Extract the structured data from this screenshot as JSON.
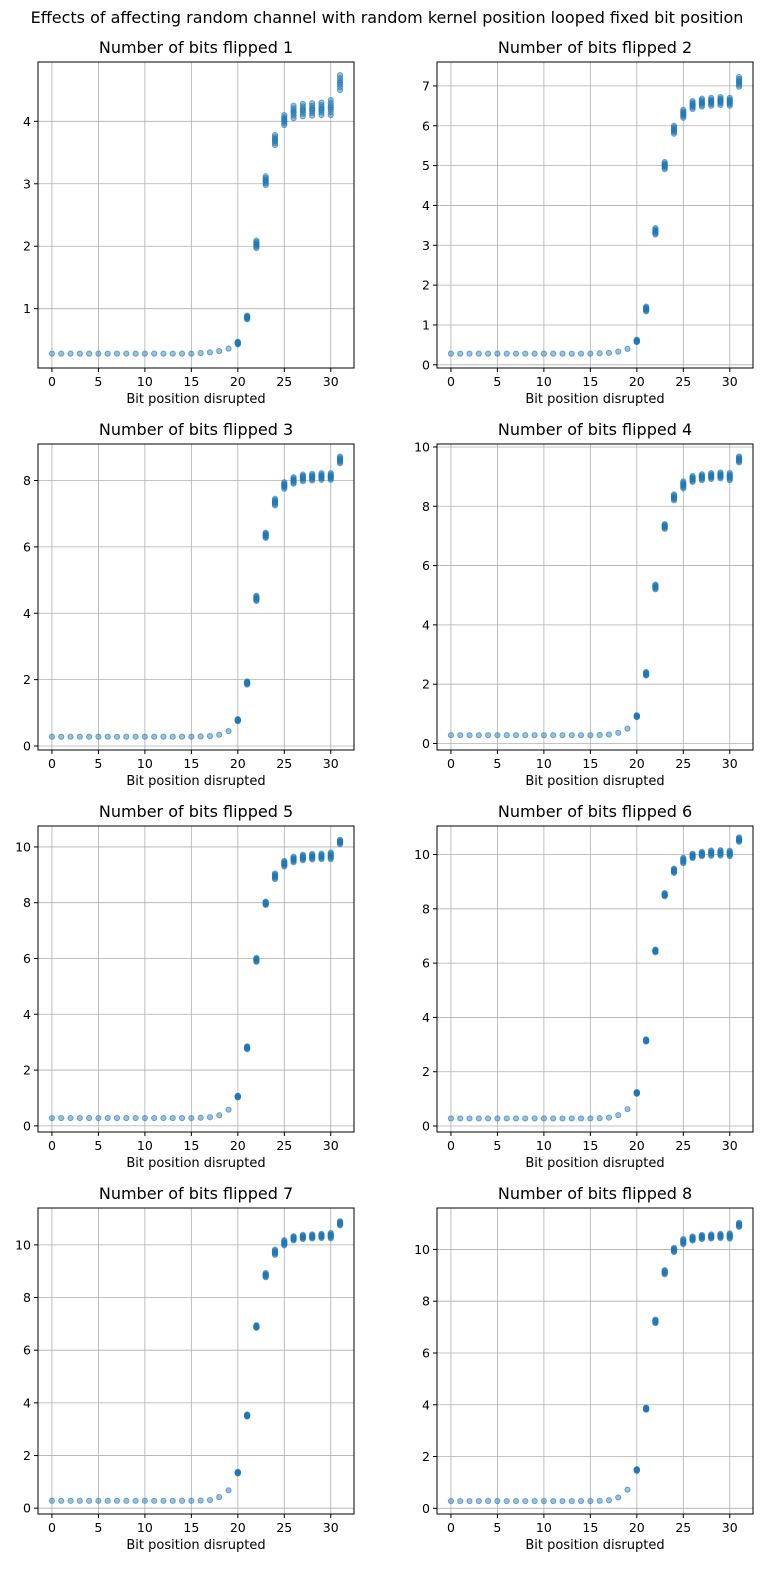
{
  "figure": {
    "suptitle": "Effects of affecting random channel with random kernel position looped fixed bit position"
  },
  "colors": {
    "series": "#1f77b4",
    "grid": "#b0b0b0"
  },
  "chart_data": [
    {
      "type": "scatter",
      "title": "Number of bits flipped 1",
      "xlabel": "Bit position disrupted",
      "ylabel": "",
      "xlim": [
        -1.5,
        32.5
      ],
      "ylim": [
        0.05,
        4.95
      ],
      "xticks": [
        0,
        5,
        10,
        15,
        20,
        25,
        30
      ],
      "yticks": [
        1,
        2,
        3,
        4
      ],
      "grid": true,
      "x": [
        0,
        1,
        2,
        3,
        4,
        5,
        6,
        7,
        8,
        9,
        10,
        11,
        12,
        13,
        14,
        15,
        16,
        17,
        18,
        19,
        20,
        21,
        22,
        23,
        24,
        25,
        26,
        27,
        28,
        29,
        30,
        31
      ],
      "y": [
        0.28,
        0.28,
        0.28,
        0.28,
        0.28,
        0.28,
        0.28,
        0.28,
        0.28,
        0.28,
        0.28,
        0.28,
        0.28,
        0.28,
        0.28,
        0.28,
        0.29,
        0.3,
        0.32,
        0.36,
        0.45,
        0.86,
        2.03,
        3.05,
        3.7,
        4.02,
        4.15,
        4.18,
        4.19,
        4.2,
        4.22,
        4.62
      ],
      "spread": [
        0,
        0,
        0,
        0,
        0,
        0,
        0,
        0,
        0,
        0,
        0,
        0,
        0,
        0,
        0,
        0,
        0,
        0,
        0,
        0,
        0.02,
        0.03,
        0.06,
        0.07,
        0.08,
        0.08,
        0.1,
        0.1,
        0.1,
        0.1,
        0.12,
        0.12
      ]
    },
    {
      "type": "scatter",
      "title": "Number of bits flipped 2",
      "xlabel": "Bit position disrupted",
      "ylabel": "",
      "xlim": [
        -1.5,
        32.5
      ],
      "ylim": [
        -0.08,
        7.6
      ],
      "xticks": [
        0,
        5,
        10,
        15,
        20,
        25,
        30
      ],
      "yticks": [
        0,
        1,
        2,
        3,
        4,
        5,
        6,
        7
      ],
      "grid": true,
      "x": [
        0,
        1,
        2,
        3,
        4,
        5,
        6,
        7,
        8,
        9,
        10,
        11,
        12,
        13,
        14,
        15,
        16,
        17,
        18,
        19,
        20,
        21,
        22,
        23,
        24,
        25,
        26,
        27,
        28,
        29,
        30,
        31
      ],
      "y": [
        0.28,
        0.28,
        0.28,
        0.28,
        0.28,
        0.28,
        0.28,
        0.28,
        0.28,
        0.28,
        0.28,
        0.28,
        0.28,
        0.28,
        0.28,
        0.28,
        0.29,
        0.3,
        0.33,
        0.4,
        0.6,
        1.4,
        3.35,
        5.0,
        5.9,
        6.3,
        6.52,
        6.58,
        6.6,
        6.62,
        6.6,
        7.1
      ],
      "spread": [
        0,
        0,
        0,
        0,
        0,
        0,
        0,
        0,
        0,
        0,
        0,
        0,
        0,
        0,
        0,
        0,
        0,
        0,
        0,
        0,
        0.03,
        0.06,
        0.08,
        0.09,
        0.1,
        0.1,
        0.1,
        0.1,
        0.1,
        0.1,
        0.1,
        0.12
      ]
    },
    {
      "type": "scatter",
      "title": "Number of bits flipped 3",
      "xlabel": "Bit position disrupted",
      "ylabel": "",
      "xlim": [
        -1.5,
        32.5
      ],
      "ylim": [
        -0.12,
        9.1
      ],
      "xticks": [
        0,
        5,
        10,
        15,
        20,
        25,
        30
      ],
      "yticks": [
        0,
        2,
        4,
        6,
        8
      ],
      "grid": true,
      "x": [
        0,
        1,
        2,
        3,
        4,
        5,
        6,
        7,
        8,
        9,
        10,
        11,
        12,
        13,
        14,
        15,
        16,
        17,
        18,
        19,
        20,
        21,
        22,
        23,
        24,
        25,
        26,
        27,
        28,
        29,
        30,
        31
      ],
      "y": [
        0.28,
        0.28,
        0.28,
        0.28,
        0.28,
        0.28,
        0.28,
        0.28,
        0.28,
        0.28,
        0.28,
        0.28,
        0.28,
        0.28,
        0.28,
        0.28,
        0.29,
        0.3,
        0.34,
        0.45,
        0.78,
        1.9,
        4.45,
        6.35,
        7.35,
        7.85,
        8.0,
        8.08,
        8.1,
        8.12,
        8.12,
        8.62
      ],
      "spread": [
        0,
        0,
        0,
        0,
        0,
        0,
        0,
        0,
        0,
        0,
        0,
        0,
        0,
        0,
        0,
        0,
        0,
        0,
        0,
        0,
        0.03,
        0.05,
        0.08,
        0.08,
        0.1,
        0.1,
        0.1,
        0.1,
        0.1,
        0.1,
        0.1,
        0.1
      ]
    },
    {
      "type": "scatter",
      "title": "Number of bits flipped 4",
      "xlabel": "Bit position disrupted",
      "ylabel": "",
      "xlim": [
        -1.5,
        32.5
      ],
      "ylim": [
        -0.22,
        10.1
      ],
      "xticks": [
        0,
        5,
        10,
        15,
        20,
        25,
        30
      ],
      "yticks": [
        0,
        2,
        4,
        6,
        8,
        10
      ],
      "grid": true,
      "x": [
        0,
        1,
        2,
        3,
        4,
        5,
        6,
        7,
        8,
        9,
        10,
        11,
        12,
        13,
        14,
        15,
        16,
        17,
        18,
        19,
        20,
        21,
        22,
        23,
        24,
        25,
        26,
        27,
        28,
        29,
        30,
        31
      ],
      "y": [
        0.28,
        0.28,
        0.28,
        0.28,
        0.28,
        0.28,
        0.28,
        0.28,
        0.28,
        0.28,
        0.28,
        0.28,
        0.28,
        0.28,
        0.28,
        0.28,
        0.29,
        0.3,
        0.36,
        0.5,
        0.92,
        2.35,
        5.28,
        7.32,
        8.3,
        8.72,
        8.92,
        8.98,
        9.02,
        9.04,
        9.0,
        9.58
      ],
      "spread": [
        0,
        0,
        0,
        0,
        0,
        0,
        0,
        0,
        0,
        0,
        0,
        0,
        0,
        0,
        0,
        0,
        0,
        0,
        0,
        0,
        0.03,
        0.06,
        0.08,
        0.08,
        0.1,
        0.12,
        0.1,
        0.1,
        0.1,
        0.1,
        0.12,
        0.1
      ]
    },
    {
      "type": "scatter",
      "title": "Number of bits flipped 5",
      "xlabel": "Bit position disrupted",
      "ylabel": "",
      "xlim": [
        -1.5,
        32.5
      ],
      "ylim": [
        -0.22,
        10.75
      ],
      "xticks": [
        0,
        5,
        10,
        15,
        20,
        25,
        30
      ],
      "yticks": [
        0,
        2,
        4,
        6,
        8,
        10
      ],
      "grid": true,
      "x": [
        0,
        1,
        2,
        3,
        4,
        5,
        6,
        7,
        8,
        9,
        10,
        11,
        12,
        13,
        14,
        15,
        16,
        17,
        18,
        19,
        20,
        21,
        22,
        23,
        24,
        25,
        26,
        27,
        28,
        29,
        30,
        31
      ],
      "y": [
        0.28,
        0.28,
        0.28,
        0.28,
        0.28,
        0.28,
        0.28,
        0.28,
        0.28,
        0.28,
        0.28,
        0.28,
        0.28,
        0.28,
        0.28,
        0.28,
        0.29,
        0.31,
        0.38,
        0.58,
        1.05,
        2.8,
        5.95,
        7.98,
        8.95,
        9.4,
        9.55,
        9.62,
        9.65,
        9.66,
        9.68,
        10.18
      ],
      "spread": [
        0,
        0,
        0,
        0,
        0,
        0,
        0,
        0,
        0,
        0,
        0,
        0,
        0,
        0,
        0,
        0,
        0,
        0,
        0,
        0,
        0.03,
        0.05,
        0.07,
        0.06,
        0.1,
        0.1,
        0.1,
        0.1,
        0.1,
        0.1,
        0.12,
        0.08
      ]
    },
    {
      "type": "scatter",
      "title": "Number of bits flipped 6",
      "xlabel": "Bit position disrupted",
      "ylabel": "",
      "xlim": [
        -1.5,
        32.5
      ],
      "ylim": [
        -0.22,
        11.05
      ],
      "xticks": [
        0,
        5,
        10,
        15,
        20,
        25,
        30
      ],
      "yticks": [
        0,
        2,
        4,
        6,
        8,
        10
      ],
      "grid": true,
      "x": [
        0,
        1,
        2,
        3,
        4,
        5,
        6,
        7,
        8,
        9,
        10,
        11,
        12,
        13,
        14,
        15,
        16,
        17,
        18,
        19,
        20,
        21,
        22,
        23,
        24,
        25,
        26,
        27,
        28,
        29,
        30,
        31
      ],
      "y": [
        0.28,
        0.28,
        0.28,
        0.28,
        0.28,
        0.28,
        0.28,
        0.28,
        0.28,
        0.28,
        0.28,
        0.28,
        0.28,
        0.28,
        0.28,
        0.28,
        0.29,
        0.31,
        0.4,
        0.62,
        1.22,
        3.15,
        6.45,
        8.52,
        9.4,
        9.78,
        9.95,
        10.02,
        10.05,
        10.06,
        10.04,
        10.55
      ],
      "spread": [
        0,
        0,
        0,
        0,
        0,
        0,
        0,
        0,
        0,
        0,
        0,
        0,
        0,
        0,
        0,
        0,
        0,
        0,
        0,
        0,
        0.03,
        0.04,
        0.05,
        0.06,
        0.08,
        0.1,
        0.08,
        0.08,
        0.1,
        0.1,
        0.1,
        0.08
      ]
    },
    {
      "type": "scatter",
      "title": "Number of bits flipped 7",
      "xlabel": "Bit position disrupted",
      "ylabel": "",
      "xlim": [
        -1.5,
        32.5
      ],
      "ylim": [
        -0.22,
        11.4
      ],
      "xticks": [
        0,
        5,
        10,
        15,
        20,
        25,
        30
      ],
      "yticks": [
        0,
        2,
        4,
        6,
        8,
        10
      ],
      "grid": true,
      "x": [
        0,
        1,
        2,
        3,
        4,
        5,
        6,
        7,
        8,
        9,
        10,
        11,
        12,
        13,
        14,
        15,
        16,
        17,
        18,
        19,
        20,
        21,
        22,
        23,
        24,
        25,
        26,
        27,
        28,
        29,
        30,
        31
      ],
      "y": [
        0.28,
        0.28,
        0.28,
        0.28,
        0.28,
        0.28,
        0.28,
        0.28,
        0.28,
        0.28,
        0.28,
        0.28,
        0.28,
        0.28,
        0.28,
        0.28,
        0.29,
        0.31,
        0.42,
        0.68,
        1.35,
        3.52,
        6.9,
        8.85,
        9.72,
        10.08,
        10.25,
        10.3,
        10.32,
        10.34,
        10.35,
        10.82
      ],
      "spread": [
        0,
        0,
        0,
        0,
        0,
        0,
        0,
        0,
        0,
        0,
        0,
        0,
        0,
        0,
        0,
        0,
        0,
        0,
        0,
        0,
        0.03,
        0.04,
        0.05,
        0.08,
        0.1,
        0.1,
        0.08,
        0.08,
        0.08,
        0.08,
        0.1,
        0.08
      ]
    },
    {
      "type": "scatter",
      "title": "Number of bits flipped 8",
      "xlabel": "Bit position disrupted",
      "ylabel": "",
      "xlim": [
        -1.5,
        32.5
      ],
      "ylim": [
        -0.22,
        11.6
      ],
      "xticks": [
        0,
        5,
        10,
        15,
        20,
        25,
        30
      ],
      "yticks": [
        0,
        2,
        4,
        6,
        8,
        10
      ],
      "grid": true,
      "x": [
        0,
        1,
        2,
        3,
        4,
        5,
        6,
        7,
        8,
        9,
        10,
        11,
        12,
        13,
        14,
        15,
        16,
        17,
        18,
        19,
        20,
        21,
        22,
        23,
        24,
        25,
        26,
        27,
        28,
        29,
        30,
        31
      ],
      "y": [
        0.28,
        0.28,
        0.28,
        0.28,
        0.28,
        0.28,
        0.28,
        0.28,
        0.28,
        0.28,
        0.28,
        0.28,
        0.28,
        0.28,
        0.28,
        0.28,
        0.29,
        0.31,
        0.42,
        0.72,
        1.48,
        3.85,
        7.22,
        9.12,
        9.98,
        10.3,
        10.42,
        10.48,
        10.5,
        10.52,
        10.52,
        10.95
      ],
      "spread": [
        0,
        0,
        0,
        0,
        0,
        0,
        0,
        0,
        0,
        0,
        0,
        0,
        0,
        0,
        0,
        0,
        0,
        0,
        0,
        0,
        0.03,
        0.04,
        0.07,
        0.08,
        0.08,
        0.1,
        0.08,
        0.08,
        0.08,
        0.08,
        0.1,
        0.08
      ]
    }
  ]
}
